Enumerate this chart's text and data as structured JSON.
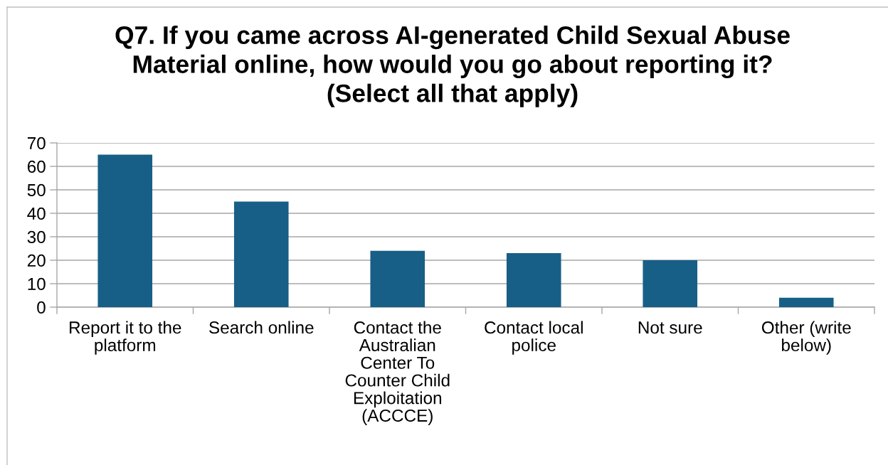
{
  "chart_data": {
    "type": "bar",
    "title": "Q7. If you came across AI-generated Child Sexual Abuse Material online, how would you go about reporting it? (Select all that apply)",
    "categories": [
      "Report it to the platform",
      "Search online",
      "Contact the Australian Center To Counter Child Exploitation (ACCCE)",
      "Contact local police",
      "Not sure",
      "Other (write below)"
    ],
    "values": [
      65,
      45,
      24,
      23,
      20,
      4
    ],
    "color": "#175f86",
    "ylim": [
      0,
      70
    ],
    "yticks": [
      0,
      10,
      20,
      30,
      40,
      50,
      60,
      70
    ],
    "grid": "y",
    "legend": false
  }
}
